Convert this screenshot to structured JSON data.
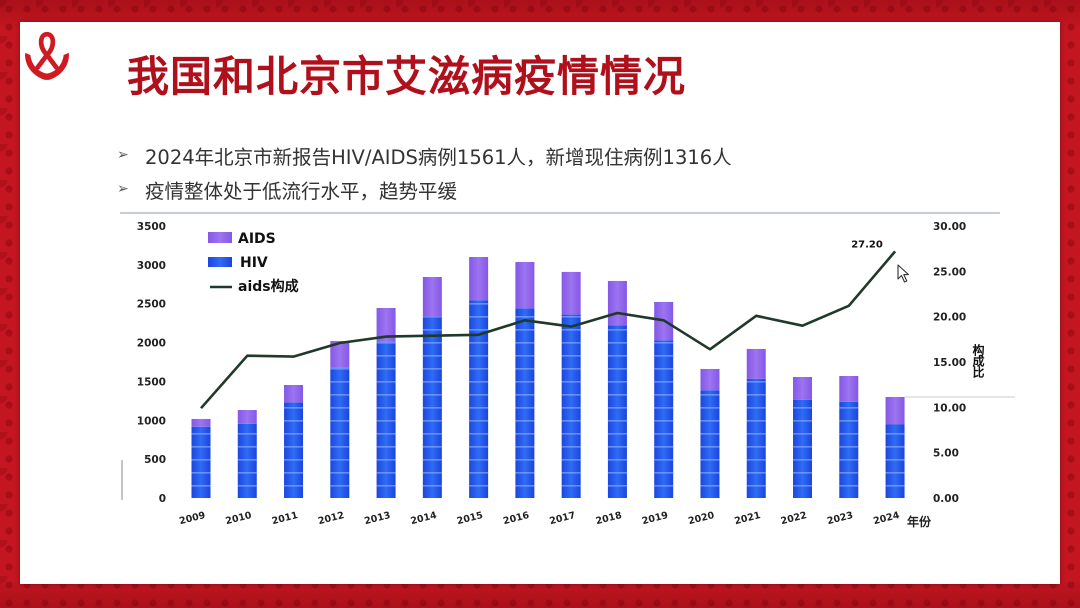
{
  "slide": {
    "logo_icon": "red-ribbon-hands-icon",
    "title": "我国和北京市艾滋病疫情情况",
    "bullet_marker": "➢",
    "bullets": [
      "2024年北京市新报告HIV/AIDS病例1561人，新增现住病例1316人",
      "疫情整体处于低流行水平，趋势平缓"
    ],
    "cursor_icon": "mouse-pointer-icon"
  },
  "colors": {
    "frame_red": "#c41620",
    "title_red": "#b0101b",
    "hiv_blue": "#2a5ff0",
    "aids_purple": "#8f63ea",
    "ratio_line": "#1f3a2a"
  },
  "chart_data": {
    "type": "bar",
    "stacked": true,
    "categories": [
      "2009",
      "2010",
      "2011",
      "2012",
      "2013",
      "2014",
      "2015",
      "2016",
      "2017",
      "2018",
      "2019",
      "2020",
      "2021",
      "2022",
      "2023",
      "2024"
    ],
    "series": [
      {
        "name": "AIDS",
        "type": "bar",
        "axis": "left",
        "values": [
          100,
          177,
          226,
          345,
          434,
          508,
          558,
          596,
          549,
          570,
          495,
          273,
          385,
          295,
          332,
          354
        ]
      },
      {
        "name": "HIV",
        "type": "bar",
        "axis": "left",
        "values": [
          917,
          955,
          1228,
          1675,
          2011,
          2336,
          2543,
          2441,
          2360,
          2223,
          2028,
          1387,
          1533,
          1262,
          1238,
          946
        ]
      },
      {
        "name": "aids构成",
        "type": "line",
        "axis": "right",
        "values": [
          9.9,
          15.7,
          15.6,
          17.1,
          17.8,
          17.9,
          18.0,
          19.6,
          18.9,
          20.4,
          19.6,
          16.4,
          20.1,
          19.0,
          21.2,
          27.2
        ]
      }
    ],
    "xlabel": "年份",
    "left_axis": {
      "ylim": [
        0,
        3500
      ],
      "ticks": [
        "0",
        "500",
        "1000",
        "1500",
        "2000",
        "2500",
        "3000",
        "3500"
      ]
    },
    "right_axis": {
      "ylabel": "构成比",
      "ylim": [
        0,
        30
      ],
      "ticks": [
        "0.00",
        "5.00",
        "10.00",
        "15.00",
        "20.00",
        "25.00",
        "30.00"
      ]
    },
    "data_labels": [
      {
        "category": "2024",
        "series": "aids构成",
        "text": "27.20"
      }
    ],
    "legend": "top-left",
    "grid": false
  }
}
